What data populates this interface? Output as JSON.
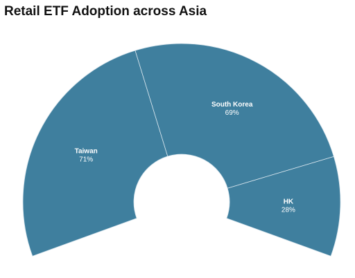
{
  "chart_data": {
    "type": "pie",
    "title": "Retail ETF Adoption across Asia",
    "categories": [
      "Taiwan",
      "South Korea",
      "HK"
    ],
    "values": [
      71,
      69,
      28
    ],
    "value_labels": [
      "71%",
      "69%",
      "28%"
    ],
    "unit": "%",
    "colors": {
      "fill": "#3f7f9e",
      "separator": "#d9e6ee"
    }
  }
}
